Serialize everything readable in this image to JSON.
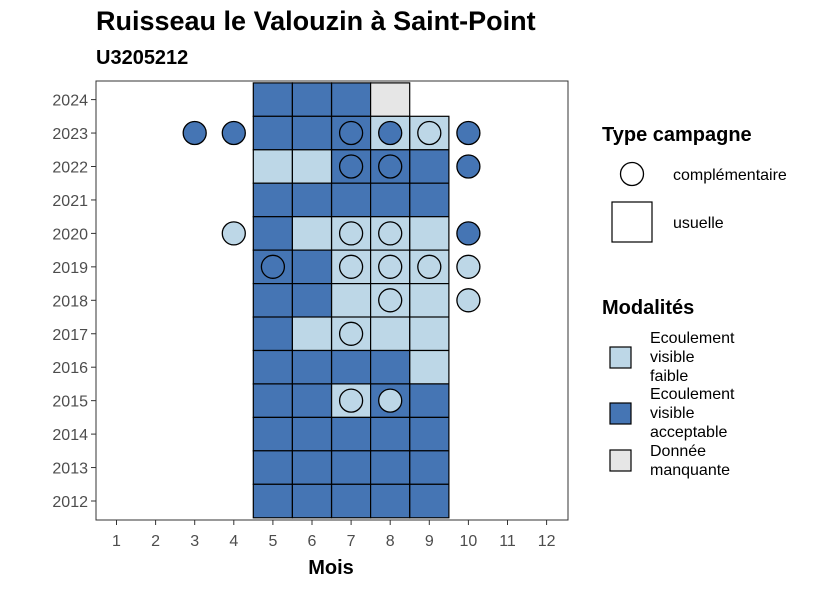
{
  "chart_data": {
    "type": "heatmap",
    "title": "Ruisseau le Valouzin à Saint-Point",
    "subtitle": "U3205212",
    "xlabel": "Mois",
    "x_ticks": [
      "1",
      "2",
      "3",
      "4",
      "5",
      "6",
      "7",
      "8",
      "9",
      "10",
      "11",
      "12"
    ],
    "y_ticks": [
      "2012",
      "2013",
      "2014",
      "2015",
      "2016",
      "2017",
      "2018",
      "2019",
      "2020",
      "2021",
      "2022",
      "2023",
      "2024"
    ],
    "colors": {
      "faible": "#bdd7e7",
      "acceptable": "#4575b4",
      "manquante": "#e6e6e6"
    },
    "legend_type": {
      "title": "Type campagne",
      "items": [
        {
          "label": "complémentaire",
          "shape": "circle"
        },
        {
          "label": "usuelle",
          "shape": "square"
        }
      ]
    },
    "legend_modalites": {
      "title": "Modalités",
      "items": [
        {
          "key": "faible",
          "lines": [
            "Ecoulement",
            "visible",
            "faible"
          ]
        },
        {
          "key": "acceptable",
          "lines": [
            "Ecoulement",
            "visible",
            "acceptable"
          ]
        },
        {
          "key": "manquante",
          "lines": [
            "Donnée",
            "manquante"
          ]
        }
      ]
    },
    "usuelle": [
      {
        "year": 2024,
        "month": 5,
        "v": "acceptable"
      },
      {
        "year": 2024,
        "month": 6,
        "v": "acceptable"
      },
      {
        "year": 2024,
        "month": 7,
        "v": "acceptable"
      },
      {
        "year": 2024,
        "month": 8,
        "v": "manquante"
      },
      {
        "year": 2023,
        "month": 5,
        "v": "acceptable"
      },
      {
        "year": 2023,
        "month": 6,
        "v": "acceptable"
      },
      {
        "year": 2023,
        "month": 7,
        "v": "acceptable"
      },
      {
        "year": 2023,
        "month": 8,
        "v": "faible"
      },
      {
        "year": 2023,
        "month": 9,
        "v": "faible"
      },
      {
        "year": 2022,
        "month": 5,
        "v": "faible"
      },
      {
        "year": 2022,
        "month": 6,
        "v": "faible"
      },
      {
        "year": 2022,
        "month": 7,
        "v": "acceptable"
      },
      {
        "year": 2022,
        "month": 8,
        "v": "acceptable"
      },
      {
        "year": 2022,
        "month": 9,
        "v": "acceptable"
      },
      {
        "year": 2021,
        "month": 5,
        "v": "acceptable"
      },
      {
        "year": 2021,
        "month": 6,
        "v": "acceptable"
      },
      {
        "year": 2021,
        "month": 7,
        "v": "acceptable"
      },
      {
        "year": 2021,
        "month": 8,
        "v": "acceptable"
      },
      {
        "year": 2021,
        "month": 9,
        "v": "acceptable"
      },
      {
        "year": 2020,
        "month": 5,
        "v": "acceptable"
      },
      {
        "year": 2020,
        "month": 6,
        "v": "faible"
      },
      {
        "year": 2020,
        "month": 7,
        "v": "faible"
      },
      {
        "year": 2020,
        "month": 8,
        "v": "faible"
      },
      {
        "year": 2020,
        "month": 9,
        "v": "faible"
      },
      {
        "year": 2019,
        "month": 5,
        "v": "acceptable"
      },
      {
        "year": 2019,
        "month": 6,
        "v": "acceptable"
      },
      {
        "year": 2019,
        "month": 7,
        "v": "faible"
      },
      {
        "year": 2019,
        "month": 8,
        "v": "faible"
      },
      {
        "year": 2019,
        "month": 9,
        "v": "faible"
      },
      {
        "year": 2018,
        "month": 5,
        "v": "acceptable"
      },
      {
        "year": 2018,
        "month": 6,
        "v": "acceptable"
      },
      {
        "year": 2018,
        "month": 7,
        "v": "faible"
      },
      {
        "year": 2018,
        "month": 8,
        "v": "faible"
      },
      {
        "year": 2018,
        "month": 9,
        "v": "faible"
      },
      {
        "year": 2017,
        "month": 5,
        "v": "acceptable"
      },
      {
        "year": 2017,
        "month": 6,
        "v": "faible"
      },
      {
        "year": 2017,
        "month": 7,
        "v": "faible"
      },
      {
        "year": 2017,
        "month": 8,
        "v": "faible"
      },
      {
        "year": 2017,
        "month": 9,
        "v": "faible"
      },
      {
        "year": 2016,
        "month": 5,
        "v": "acceptable"
      },
      {
        "year": 2016,
        "month": 6,
        "v": "acceptable"
      },
      {
        "year": 2016,
        "month": 7,
        "v": "acceptable"
      },
      {
        "year": 2016,
        "month": 8,
        "v": "acceptable"
      },
      {
        "year": 2016,
        "month": 9,
        "v": "faible"
      },
      {
        "year": 2015,
        "month": 5,
        "v": "acceptable"
      },
      {
        "year": 2015,
        "month": 6,
        "v": "acceptable"
      },
      {
        "year": 2015,
        "month": 7,
        "v": "faible"
      },
      {
        "year": 2015,
        "month": 8,
        "v": "acceptable"
      },
      {
        "year": 2015,
        "month": 9,
        "v": "acceptable"
      },
      {
        "year": 2014,
        "month": 5,
        "v": "acceptable"
      },
      {
        "year": 2014,
        "month": 6,
        "v": "acceptable"
      },
      {
        "year": 2014,
        "month": 7,
        "v": "acceptable"
      },
      {
        "year": 2014,
        "month": 8,
        "v": "acceptable"
      },
      {
        "year": 2014,
        "month": 9,
        "v": "acceptable"
      },
      {
        "year": 2013,
        "month": 5,
        "v": "acceptable"
      },
      {
        "year": 2013,
        "month": 6,
        "v": "acceptable"
      },
      {
        "year": 2013,
        "month": 7,
        "v": "acceptable"
      },
      {
        "year": 2013,
        "month": 8,
        "v": "acceptable"
      },
      {
        "year": 2013,
        "month": 9,
        "v": "acceptable"
      },
      {
        "year": 2012,
        "month": 5,
        "v": "acceptable"
      },
      {
        "year": 2012,
        "month": 6,
        "v": "acceptable"
      },
      {
        "year": 2012,
        "month": 7,
        "v": "acceptable"
      },
      {
        "year": 2012,
        "month": 8,
        "v": "acceptable"
      },
      {
        "year": 2012,
        "month": 9,
        "v": "acceptable"
      }
    ],
    "complementaire": [
      {
        "year": 2023,
        "month": 3,
        "v": "acceptable"
      },
      {
        "year": 2023,
        "month": 4,
        "v": "acceptable"
      },
      {
        "year": 2023,
        "month": 7,
        "v": "acceptable"
      },
      {
        "year": 2023,
        "month": 8,
        "v": "acceptable"
      },
      {
        "year": 2023,
        "month": 9,
        "v": "faible"
      },
      {
        "year": 2023,
        "month": 10,
        "v": "acceptable"
      },
      {
        "year": 2022,
        "month": 7,
        "v": "acceptable"
      },
      {
        "year": 2022,
        "month": 8,
        "v": "acceptable"
      },
      {
        "year": 2022,
        "month": 10,
        "v": "acceptable"
      },
      {
        "year": 2020,
        "month": 4,
        "v": "faible"
      },
      {
        "year": 2020,
        "month": 7,
        "v": "faible"
      },
      {
        "year": 2020,
        "month": 8,
        "v": "faible"
      },
      {
        "year": 2020,
        "month": 10,
        "v": "acceptable"
      },
      {
        "year": 2019,
        "month": 5,
        "v": "acceptable"
      },
      {
        "year": 2019,
        "month": 7,
        "v": "faible"
      },
      {
        "year": 2019,
        "month": 8,
        "v": "faible"
      },
      {
        "year": 2019,
        "month": 9,
        "v": "faible"
      },
      {
        "year": 2019,
        "month": 10,
        "v": "faible"
      },
      {
        "year": 2018,
        "month": 8,
        "v": "faible"
      },
      {
        "year": 2018,
        "month": 10,
        "v": "faible"
      },
      {
        "year": 2017,
        "month": 7,
        "v": "faible"
      },
      {
        "year": 2015,
        "month": 7,
        "v": "faible"
      },
      {
        "year": 2015,
        "month": 8,
        "v": "faible"
      }
    ]
  }
}
